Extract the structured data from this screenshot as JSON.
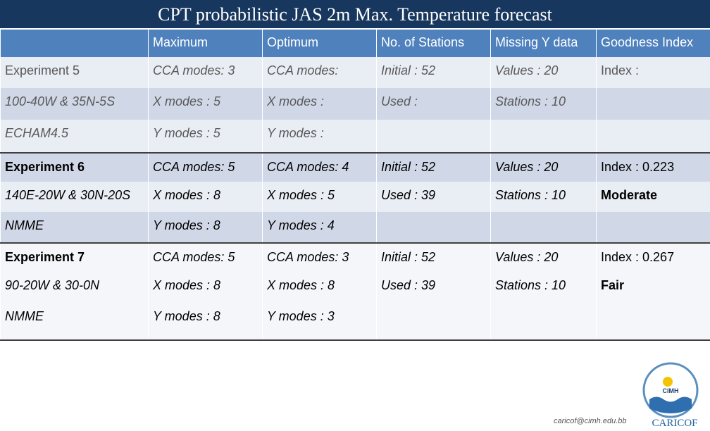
{
  "header": {
    "title": "CPT probabilistic JAS 2m Max. Temperature forecast"
  },
  "table": {
    "columns": [
      null,
      "Maximum",
      "Optimum",
      "No. of Stations",
      "Missing Y data",
      "Goodness Index"
    ],
    "rows": [
      [
        "Experiment 5",
        "CCA modes: 3",
        "CCA modes:",
        "Initial : 52",
        "Values : 20",
        "Index :"
      ],
      [
        "100-40W & 35N-5S",
        "X modes : 5",
        "X modes :",
        "Used :",
        "Stations : 10",
        null
      ],
      [
        "ECHAM4.5",
        "Y modes : 5",
        "Y modes :",
        null,
        null,
        null
      ],
      [
        "Experiment 6",
        "CCA modes: 5",
        "CCA modes: 4",
        "Initial : 52",
        "Values : 20",
        "Index : 0.223"
      ],
      [
        "140E-20W & 30N-20S",
        "X modes : 8",
        "X modes : 5",
        "Used : 39",
        "Stations : 10",
        "Moderate"
      ],
      [
        "NMME",
        "Y modes : 8",
        "Y modes : 4",
        null,
        null,
        null
      ],
      [
        "Experiment 7",
        "CCA modes: 5",
        "CCA modes: 3",
        "Initial : 52",
        "Values : 20",
        "Index : 0.267"
      ],
      [
        "90-20W & 30-0N",
        "X modes : 8",
        "X modes : 8",
        "Used : 39",
        "Stations : 10",
        "Fair"
      ],
      [
        "NMME",
        "Y modes : 8",
        "Y modes : 3",
        null,
        null,
        null
      ]
    ]
  },
  "footer": {
    "email": "caricof@cimh.edu.bb",
    "logo_top": "CIMH",
    "logo_bottom": "CARICOF"
  }
}
